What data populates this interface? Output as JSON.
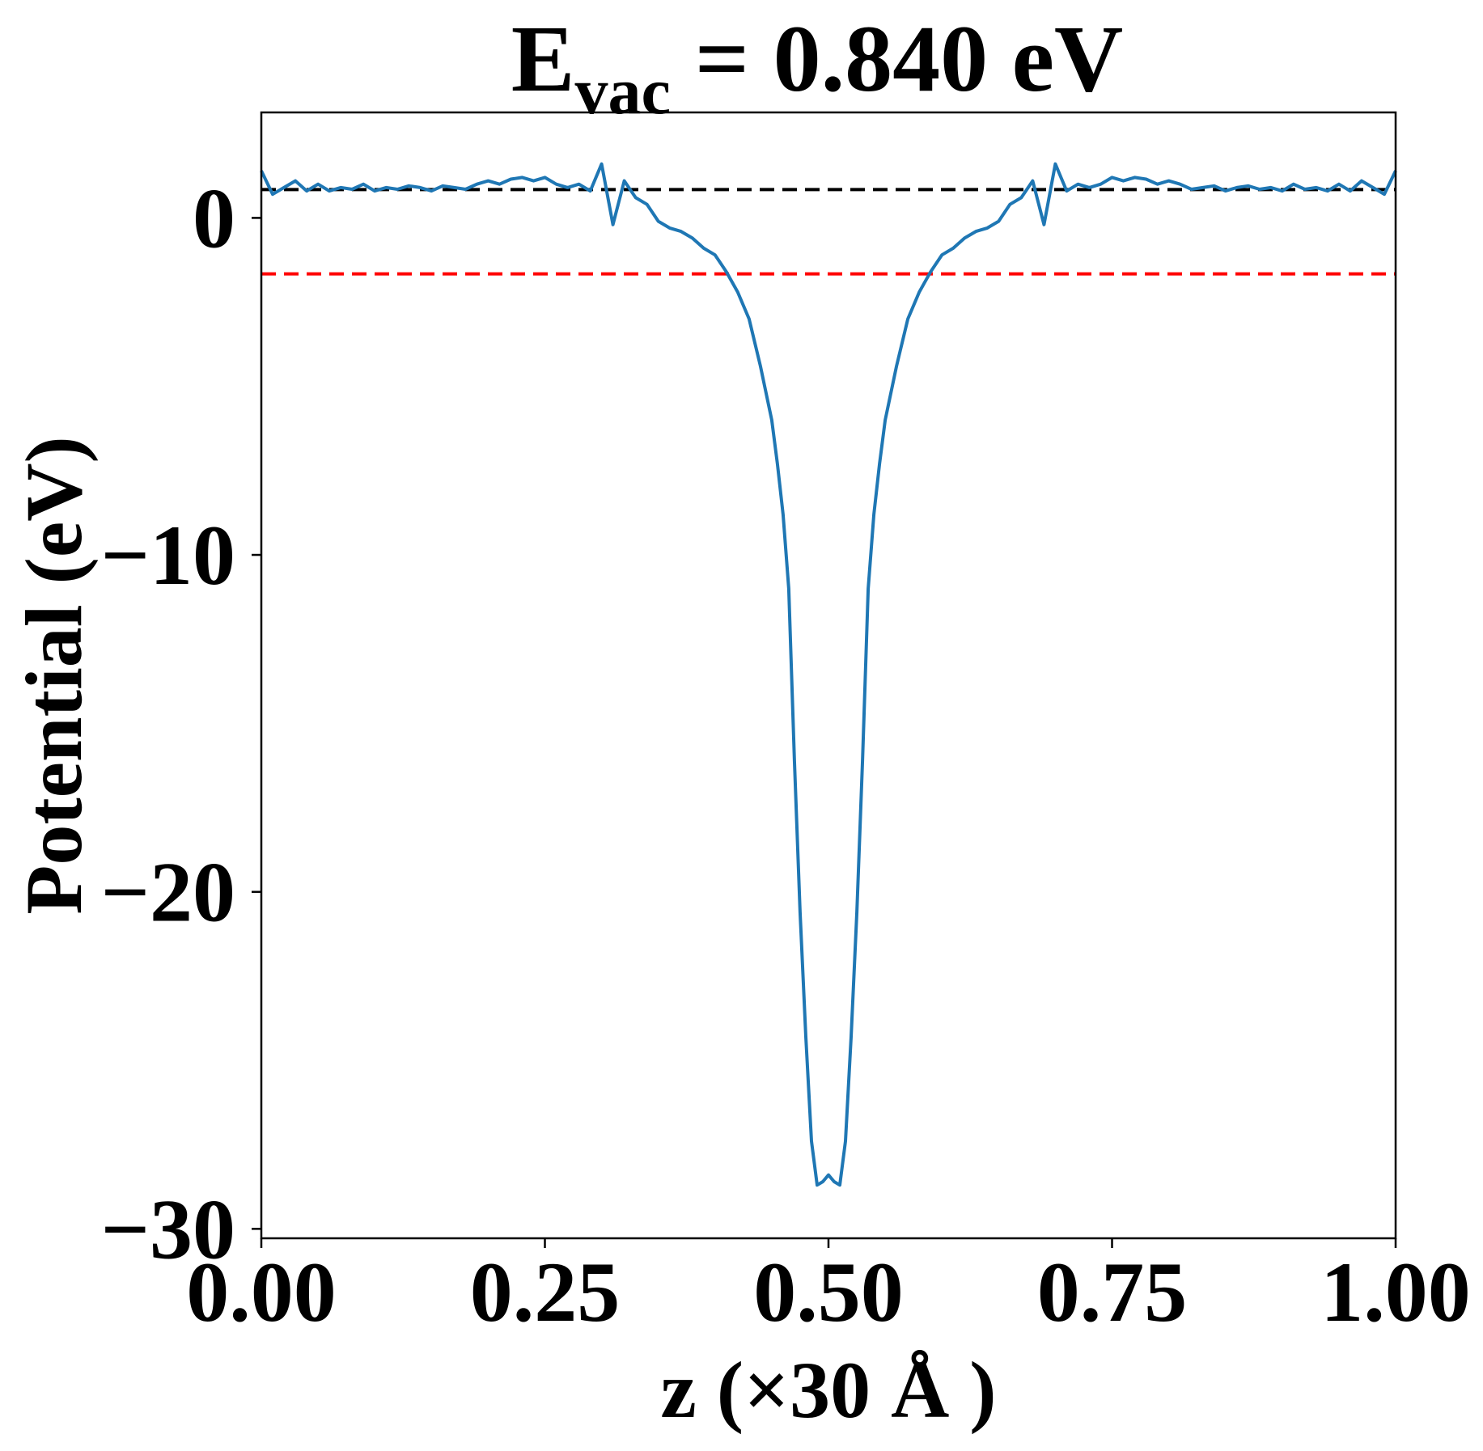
{
  "chart_data": {
    "type": "line",
    "title": {
      "main": "E",
      "subscript": "vac",
      "rest": "= 0.840 eV"
    },
    "x_label": "z (×30 Å )",
    "y_label": "Potential (eV)",
    "xlim": [
      0,
      1
    ],
    "ylim": [
      -30.28,
      3.13
    ],
    "xticks": [
      {
        "value": 0,
        "label": "0.00"
      },
      {
        "value": 0.25,
        "label": "0.25"
      },
      {
        "value": 0.5,
        "label": "0.50"
      },
      {
        "value": 0.75,
        "label": "0.75"
      },
      {
        "value": 1,
        "label": "1.00"
      }
    ],
    "yticks": [
      0,
      {
        "value": -10,
        "label": "−10"
      },
      {
        "value": -20,
        "label": "−20"
      },
      {
        "value": -30,
        "label": "−30"
      }
    ],
    "hlines": [
      {
        "value": 0.84,
        "color": "#000000"
      },
      {
        "value": -1.66,
        "color": "#ff0000"
      }
    ],
    "x": [
      0,
      0.01,
      0.02,
      0.03,
      0.04,
      0.05,
      0.06,
      0.07,
      0.08,
      0.09,
      0.1,
      0.11,
      0.12,
      0.13,
      0.14,
      0.15,
      0.16,
      0.17,
      0.18,
      0.19,
      0.2,
      0.21,
      0.22,
      0.23,
      0.24,
      0.25,
      0.26,
      0.27,
      0.28,
      0.29,
      0.3,
      0.31,
      0.32,
      0.33,
      0.34,
      0.35,
      0.36,
      0.37,
      0.38,
      0.39,
      0.4,
      0.41,
      0.42,
      0.43,
      0.44,
      0.45,
      0.455,
      0.46,
      0.465,
      0.47,
      0.475,
      0.48,
      0.485,
      0.49,
      0.495,
      0.5,
      0.505,
      0.51,
      0.515,
      0.52,
      0.525,
      0.53,
      0.535,
      0.54,
      0.545,
      0.55,
      0.56,
      0.57,
      0.58,
      0.59,
      0.6,
      0.61,
      0.62,
      0.63,
      0.64,
      0.65,
      0.66,
      0.67,
      0.68,
      0.69,
      0.7,
      0.71,
      0.72,
      0.73,
      0.74,
      0.75,
      0.76,
      0.77,
      0.78,
      0.79,
      0.8,
      0.81,
      0.82,
      0.83,
      0.84,
      0.85,
      0.86,
      0.87,
      0.88,
      0.89,
      0.9,
      0.91,
      0.92,
      0.93,
      0.94,
      0.95,
      0.96,
      0.97,
      0.98,
      0.99,
      1
    ],
    "series": [
      {
        "color": "#1f77b4",
        "values": [
          1.4,
          0.7,
          0.9,
          1.1,
          0.8,
          1.0,
          0.8,
          0.9,
          0.85,
          1.0,
          0.8,
          0.9,
          0.85,
          0.95,
          0.9,
          0.8,
          0.95,
          0.9,
          0.85,
          1.0,
          1.1,
          1.0,
          1.15,
          1.2,
          1.1,
          1.2,
          1.0,
          0.9,
          1.0,
          0.8,
          1.6,
          -0.2,
          1.1,
          0.6,
          0.4,
          -0.1,
          -0.3,
          -0.4,
          -0.6,
          -0.9,
          -1.1,
          -1.6,
          -2.2,
          -3.0,
          -4.4,
          -6.0,
          -7.3,
          -8.8,
          -11.0,
          -16.1,
          -20.6,
          -24.3,
          -27.4,
          -28.7,
          -28.6,
          -28.4,
          -28.6,
          -28.7,
          -27.4,
          -24.3,
          -20.6,
          -16.1,
          -11.0,
          -8.8,
          -7.3,
          -6.0,
          -4.4,
          -3.0,
          -2.2,
          -1.6,
          -1.1,
          -0.9,
          -0.6,
          -0.4,
          -0.3,
          -0.1,
          0.4,
          0.6,
          1.1,
          -0.2,
          1.6,
          0.8,
          1.0,
          0.9,
          1.0,
          1.2,
          1.1,
          1.2,
          1.15,
          1.0,
          1.1,
          1.0,
          0.85,
          0.9,
          0.95,
          0.8,
          0.9,
          0.95,
          0.85,
          0.9,
          0.8,
          1.0,
          0.85,
          0.9,
          0.8,
          1.0,
          0.8,
          1.1,
          0.9,
          0.7,
          1.4
        ]
      }
    ]
  }
}
